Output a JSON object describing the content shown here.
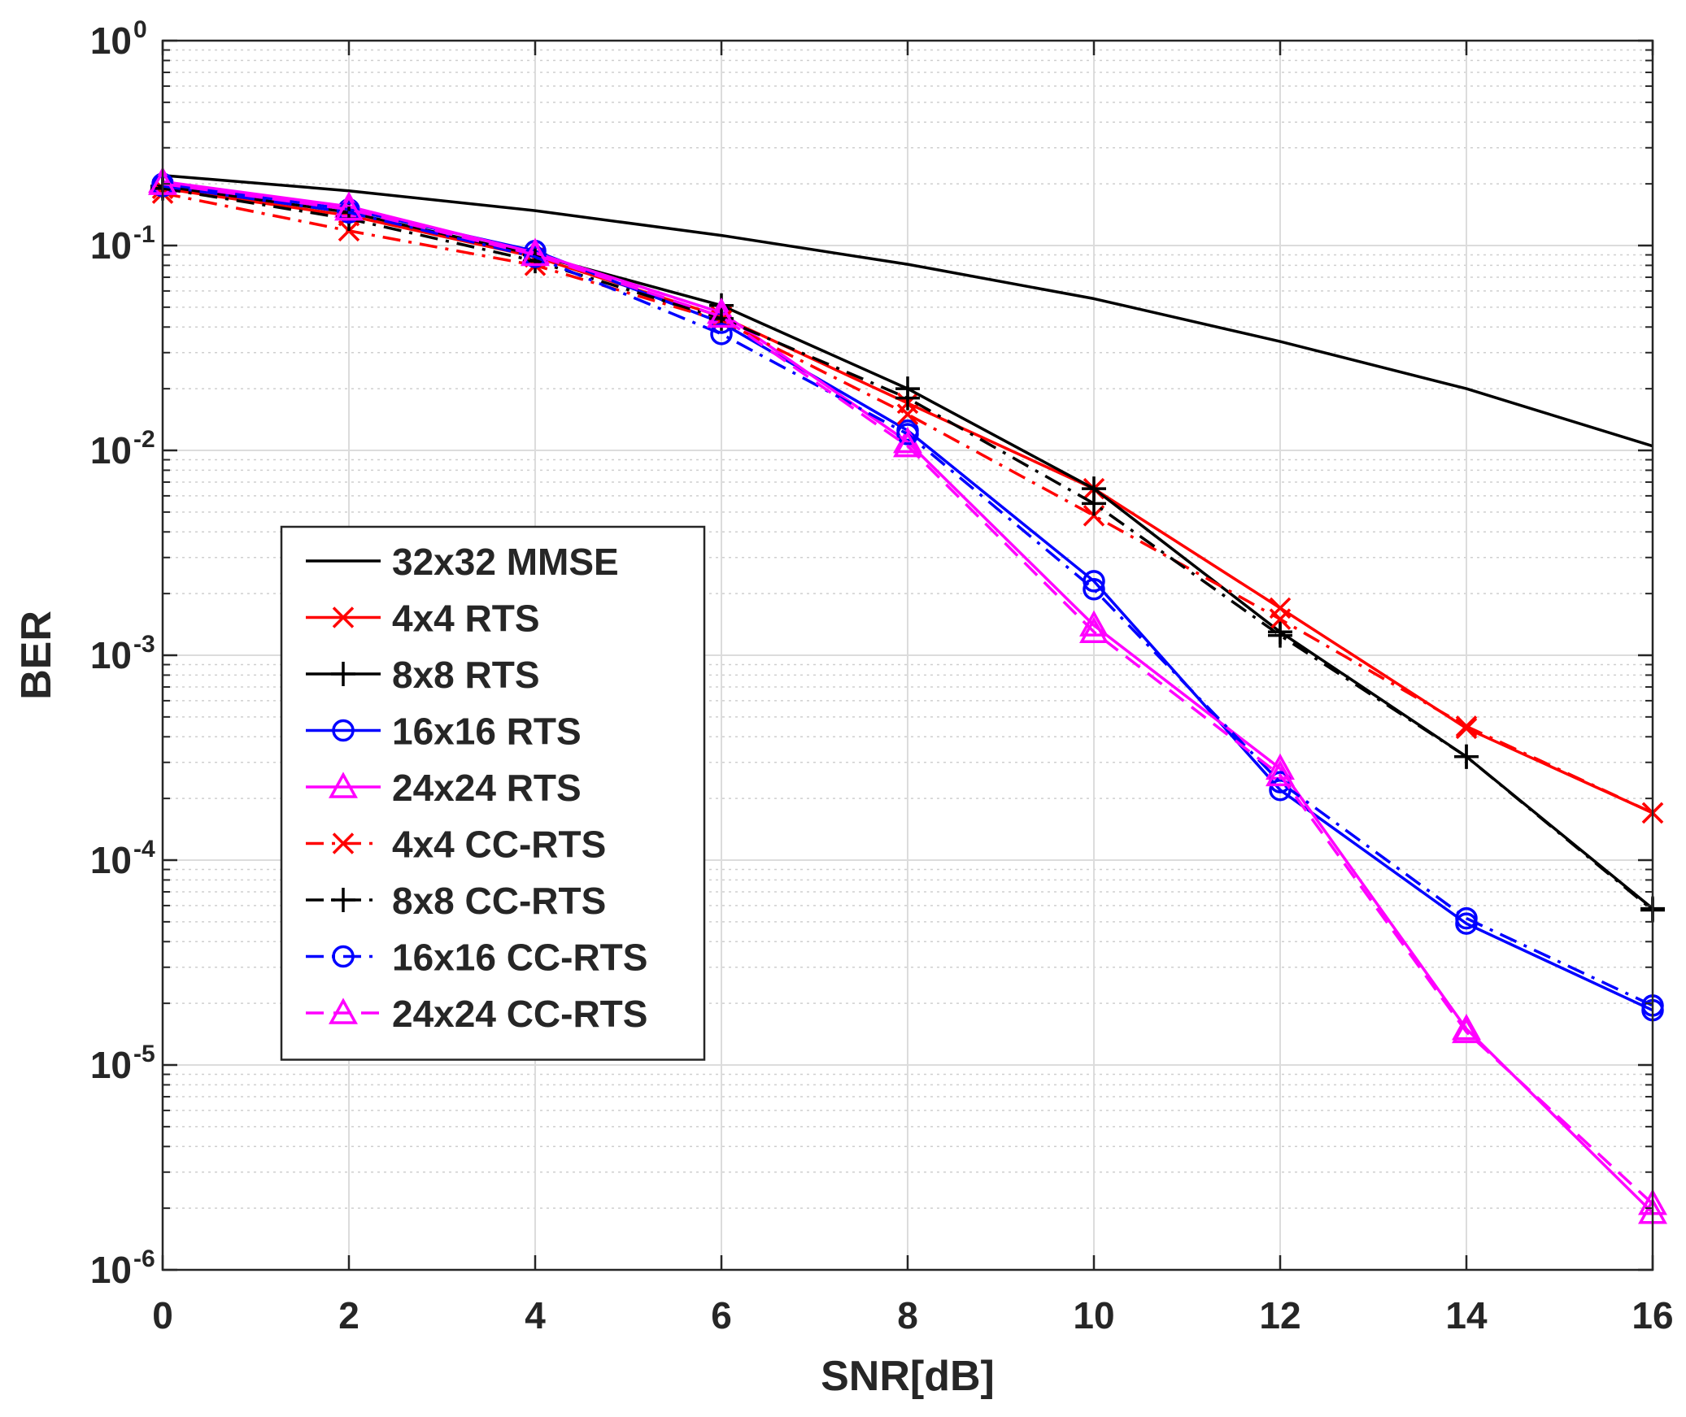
{
  "chart_data": {
    "type": "line",
    "title": "",
    "xlabel": "SNR[dB]",
    "ylabel": "BER",
    "xscale": "linear",
    "yscale": "log",
    "xlim": [
      0,
      16
    ],
    "ylim": [
      1e-06,
      1
    ],
    "grid": true,
    "legend_position": "center-left",
    "x_ticks": [
      0,
      2,
      4,
      6,
      8,
      10,
      12,
      14,
      16
    ],
    "x_tick_labels": [
      "0",
      "2",
      "4",
      "6",
      "8",
      "10",
      "12",
      "14",
      "16"
    ],
    "y_ticks": [
      1e-06,
      1e-05,
      0.0001,
      0.001,
      0.01,
      0.1,
      1
    ],
    "y_tick_labels": [
      {
        "base": "10",
        "exp": "-6"
      },
      {
        "base": "10",
        "exp": "-5"
      },
      {
        "base": "10",
        "exp": "-4"
      },
      {
        "base": "10",
        "exp": "-3"
      },
      {
        "base": "10",
        "exp": "-2"
      },
      {
        "base": "10",
        "exp": "-1"
      },
      {
        "base": "10",
        "exp": "0"
      }
    ],
    "x": [
      0,
      2,
      4,
      6,
      8,
      10,
      12,
      14,
      16
    ],
    "series": [
      {
        "name": "32x32 MMSE",
        "color": "#000000",
        "dash": "solid",
        "marker": "none",
        "values": [
          0.22,
          0.185,
          0.148,
          0.112,
          0.081,
          0.055,
          0.034,
          0.02,
          0.0105
        ]
      },
      {
        "name": "4x4 RTS",
        "color": "#ff0000",
        "dash": "solid",
        "marker": "x",
        "values": [
          0.19,
          0.14,
          0.088,
          0.045,
          0.017,
          0.0065,
          0.0017,
          0.00044,
          0.00017
        ]
      },
      {
        "name": "8x8 RTS",
        "color": "#000000",
        "dash": "solid",
        "marker": "plus",
        "values": [
          0.195,
          0.145,
          0.09,
          0.051,
          0.02,
          0.0065,
          0.0013,
          0.00032,
          5.8e-05
        ]
      },
      {
        "name": "16x16 RTS",
        "color": "#0000ff",
        "dash": "solid",
        "marker": "circle",
        "values": [
          0.2,
          0.15,
          0.094,
          0.042,
          0.0125,
          0.0023,
          0.00022,
          4.9e-05,
          1.85e-05
        ]
      },
      {
        "name": "24x24 RTS",
        "color": "#ff00ff",
        "dash": "solid",
        "marker": "triangle",
        "values": [
          0.205,
          0.155,
          0.092,
          0.047,
          0.011,
          0.0014,
          0.00028,
          1.5e-05,
          1.9e-06
        ]
      },
      {
        "name": "4x4 CC-RTS",
        "color": "#ff0000",
        "dash": "dashdot",
        "marker": "x",
        "values": [
          0.18,
          0.118,
          0.08,
          0.043,
          0.015,
          0.0048,
          0.0015,
          0.00045,
          0.00017
        ]
      },
      {
        "name": "8x8 CC-RTS",
        "color": "#000000",
        "dash": "dashdot",
        "marker": "plus",
        "values": [
          0.19,
          0.135,
          0.084,
          0.044,
          0.018,
          0.0055,
          0.00125,
          0.00032,
          5.7e-05
        ]
      },
      {
        "name": "16x16 CC-RTS",
        "color": "#0000ff",
        "dash": "dashdot",
        "marker": "circle",
        "values": [
          0.195,
          0.145,
          0.088,
          0.037,
          0.012,
          0.0021,
          0.00024,
          5.2e-05,
          1.95e-05
        ]
      },
      {
        "name": "24x24 CC-RTS",
        "color": "#ff00ff",
        "dash": "dashed",
        "marker": "triangle",
        "values": [
          0.2,
          0.15,
          0.09,
          0.045,
          0.0105,
          0.0013,
          0.00026,
          1.45e-05,
          2.1e-06
        ]
      }
    ]
  }
}
